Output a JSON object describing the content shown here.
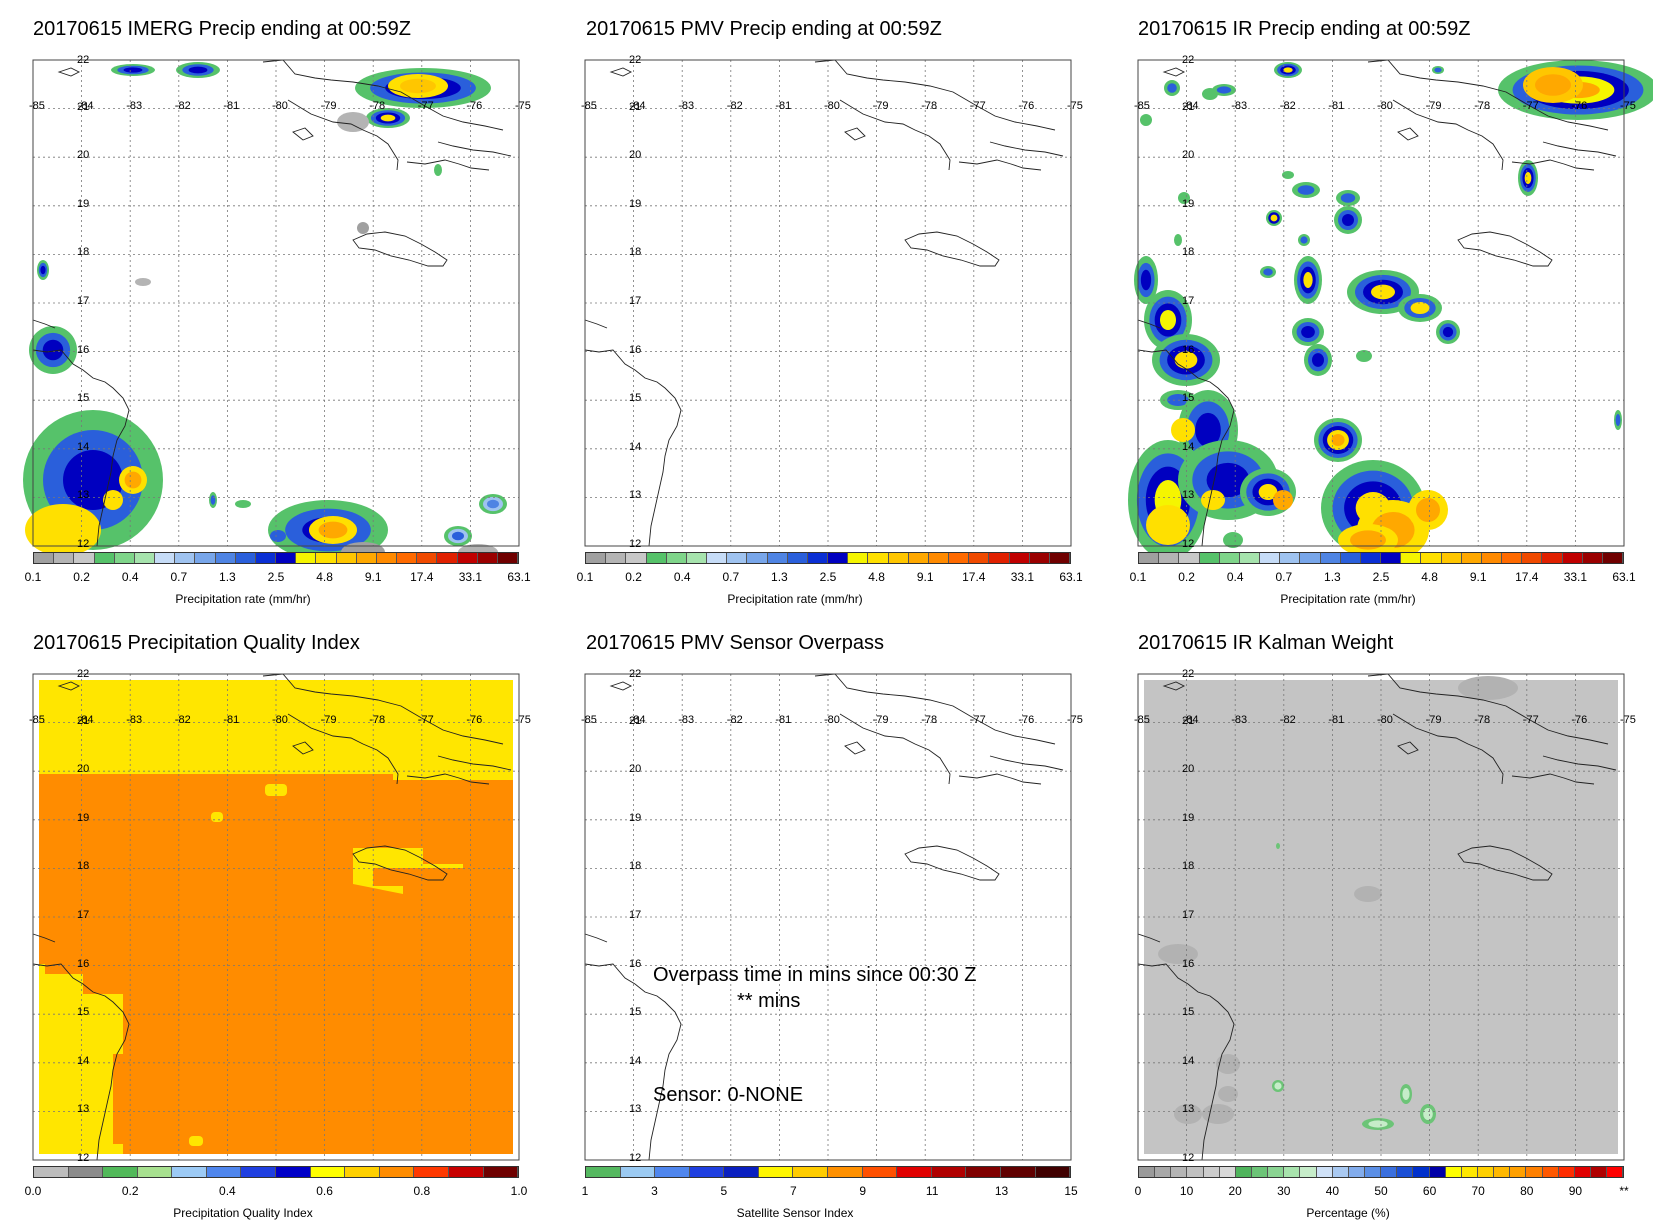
{
  "panels": [
    {
      "title": "20170615 IMERG Precip ending at 00:59Z",
      "colorbar_ticks": [
        "0.1",
        "0.2",
        "0.4",
        "0.7",
        "1.3",
        "2.5",
        "4.8",
        "9.1",
        "17.4",
        "33.1",
        "63.1"
      ],
      "colorbar_label": "Precipitation rate (mm/hr)",
      "scheme": "precip"
    },
    {
      "title": "20170615 PMV Precip ending at 00:59Z",
      "colorbar_ticks": [
        "0.1",
        "0.2",
        "0.4",
        "0.7",
        "1.3",
        "2.5",
        "4.8",
        "9.1",
        "17.4",
        "33.1",
        "63.1"
      ],
      "colorbar_label": "Precipitation rate (mm/hr)",
      "scheme": "precip"
    },
    {
      "title": "20170615 IR Precip ending at 00:59Z",
      "colorbar_ticks": [
        "0.1",
        "0.2",
        "0.4",
        "0.7",
        "1.3",
        "2.5",
        "4.8",
        "9.1",
        "17.4",
        "33.1",
        "63.1"
      ],
      "colorbar_label": "Precipitation rate (mm/hr)",
      "scheme": "precip"
    },
    {
      "title": "20170615 Precipitation Quality Index",
      "colorbar_ticks": [
        "0.0",
        "0.2",
        "0.4",
        "0.6",
        "0.8",
        "1.0"
      ],
      "colorbar_label": "Precipitation Quality Index",
      "scheme": "pqi"
    },
    {
      "title": "20170615 PMV Sensor Overpass",
      "colorbar_ticks": [
        "1",
        "3",
        "5",
        "7",
        "9",
        "11",
        "13",
        "15"
      ],
      "colorbar_label": "Satellite Sensor Index",
      "scheme": "sensor",
      "overpass_line1": "Overpass time in mins since 00:30 Z",
      "overpass_line2": "** mins",
      "sensor_line": "Sensor:   0-NONE"
    },
    {
      "title": "20170615 IR Kalman Weight",
      "colorbar_ticks": [
        "0",
        "10",
        "20",
        "30",
        "40",
        "50",
        "60",
        "70",
        "80",
        "90",
        "**"
      ],
      "colorbar_label": "Percentage (%)",
      "scheme": "kalman"
    }
  ],
  "lon_labels": [
    "-85",
    "-84",
    "-83",
    "-82",
    "-81",
    "-80",
    "-79",
    "-78",
    "-77",
    "-76",
    "-75"
  ],
  "lat_labels": [
    "22",
    "21",
    "20",
    "19",
    "18",
    "17",
    "16",
    "15",
    "14",
    "13",
    "12"
  ],
  "colors": {
    "precip": [
      "#a0a0a0",
      "#b4b4b4",
      "#c8c8c8",
      "#56c26a",
      "#7fd58a",
      "#a6e3ad",
      "#c6dcf7",
      "#9fc3f0",
      "#78a6ea",
      "#4f84e3",
      "#2a5fdb",
      "#0a2fd4",
      "#0000c0",
      "#f5f500",
      "#ffe000",
      "#ffc600",
      "#ffa800",
      "#ff8a00",
      "#ff6a00",
      "#f04a00",
      "#e02000",
      "#c00000",
      "#9a0000",
      "#700000"
    ],
    "pqi": [
      "#bdbdbd",
      "#8c8c8c",
      "#52b95a",
      "#a7e08f",
      "#9ccaf5",
      "#4f86ee",
      "#1f3fe0",
      "#0000c8",
      "#ffff00",
      "#ffd000",
      "#ff8c00",
      "#ff3800",
      "#c80000",
      "#6e0000"
    ],
    "sensor": [
      "#55b860",
      "#9bcaf2",
      "#4f86ee",
      "#1f3fe0",
      "#0a1fc0",
      "#fff600",
      "#ffcc00",
      "#ff9000",
      "#ff5000",
      "#e00000",
      "#b00000",
      "#800000",
      "#600000",
      "#400000"
    ],
    "kalman": [
      "#9a9a9a",
      "#a8a8a8",
      "#b4b4b4",
      "#c0c0c0",
      "#cccccc",
      "#d8d8d8",
      "#4fb45c",
      "#6cc477",
      "#8ad492",
      "#a8e3ad",
      "#c6ecc9",
      "#cfe1f7",
      "#a9c9f1",
      "#82acec",
      "#5b8fe6",
      "#3a6fde",
      "#1a4fd6",
      "#0030cc",
      "#0000a8",
      "#ffff00",
      "#ffe800",
      "#ffd000",
      "#ffb800",
      "#ffa000",
      "#ff8000",
      "#ff5800",
      "#ff2c00",
      "#e00000",
      "#b00000",
      "#ff0000"
    ]
  }
}
